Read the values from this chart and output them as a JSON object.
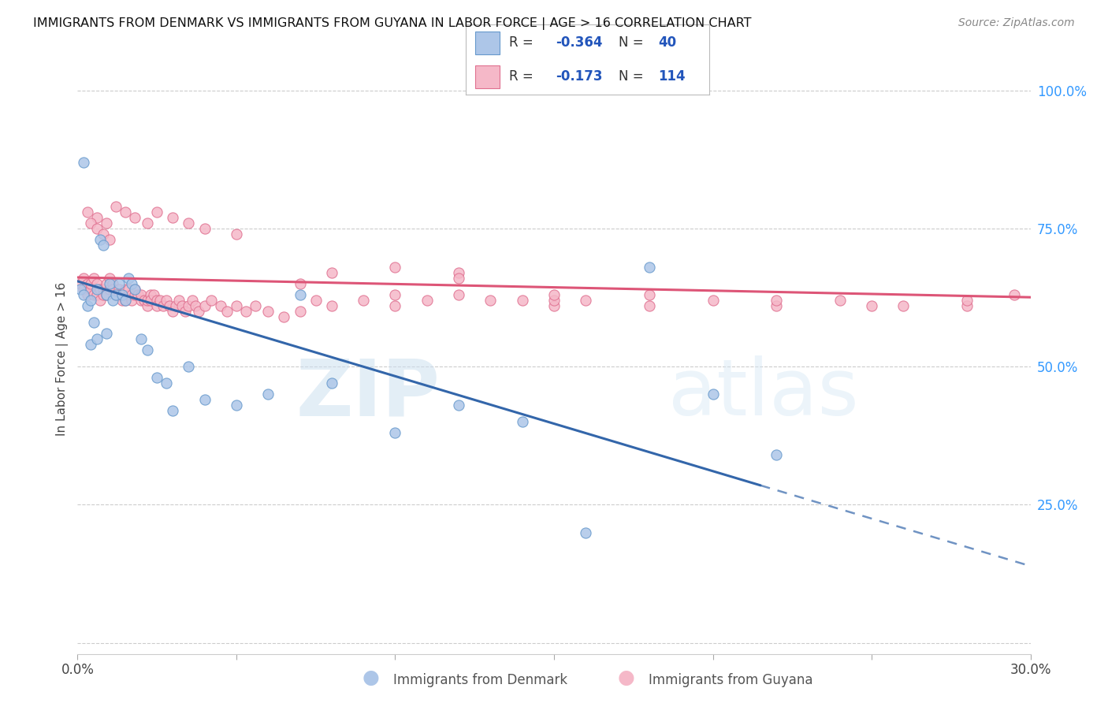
{
  "title": "IMMIGRANTS FROM DENMARK VS IMMIGRANTS FROM GUYANA IN LABOR FORCE | AGE > 16 CORRELATION CHART",
  "source": "Source: ZipAtlas.com",
  "ylabel": "In Labor Force | Age > 16",
  "xlim": [
    0.0,
    0.3
  ],
  "ylim": [
    0.0,
    1.05
  ],
  "ytick_labels": [
    "",
    "25.0%",
    "50.0%",
    "75.0%",
    "100.0%"
  ],
  "ytick_values": [
    0.0,
    0.25,
    0.5,
    0.75,
    1.0
  ],
  "xtick_labels": [
    "0.0%",
    "",
    "",
    "",
    "",
    "",
    "30.0%"
  ],
  "xtick_values": [
    0.0,
    0.05,
    0.1,
    0.15,
    0.2,
    0.25,
    0.3
  ],
  "denmark_fill_color": "#adc6e8",
  "denmark_edge_color": "#6699cc",
  "guyana_fill_color": "#f5b8c8",
  "guyana_edge_color": "#e07090",
  "denmark_line_color": "#3366aa",
  "guyana_line_color": "#dd5577",
  "dk_intercept": 0.655,
  "dk_slope": -1.72,
  "gy_intercept": 0.662,
  "gy_slope": -0.12,
  "dk_x": [
    0.001,
    0.002,
    0.003,
    0.004,
    0.005,
    0.006,
    0.007,
    0.008,
    0.009,
    0.01,
    0.011,
    0.012,
    0.013,
    0.014,
    0.015,
    0.016,
    0.017,
    0.018,
    0.02,
    0.022,
    0.025,
    0.028,
    0.03,
    0.035,
    0.04,
    0.05,
    0.06,
    0.07,
    0.08,
    0.1,
    0.12,
    0.14,
    0.16,
    0.18,
    0.2,
    0.22,
    0.002,
    0.004,
    0.006,
    0.009
  ],
  "dk_y": [
    0.64,
    0.63,
    0.61,
    0.62,
    0.58,
    0.64,
    0.73,
    0.72,
    0.63,
    0.65,
    0.62,
    0.63,
    0.65,
    0.63,
    0.62,
    0.66,
    0.65,
    0.64,
    0.55,
    0.53,
    0.48,
    0.47,
    0.42,
    0.5,
    0.44,
    0.43,
    0.45,
    0.63,
    0.47,
    0.38,
    0.43,
    0.4,
    0.2,
    0.68,
    0.45,
    0.34,
    0.87,
    0.54,
    0.55,
    0.56
  ],
  "gy_x": [
    0.001,
    0.002,
    0.002,
    0.003,
    0.003,
    0.004,
    0.004,
    0.005,
    0.005,
    0.006,
    0.006,
    0.007,
    0.007,
    0.008,
    0.008,
    0.009,
    0.009,
    0.01,
    0.01,
    0.011,
    0.011,
    0.012,
    0.012,
    0.013,
    0.013,
    0.014,
    0.014,
    0.015,
    0.015,
    0.016,
    0.016,
    0.017,
    0.017,
    0.018,
    0.018,
    0.019,
    0.02,
    0.02,
    0.021,
    0.022,
    0.022,
    0.023,
    0.023,
    0.024,
    0.025,
    0.025,
    0.026,
    0.027,
    0.028,
    0.029,
    0.03,
    0.031,
    0.032,
    0.033,
    0.034,
    0.035,
    0.036,
    0.037,
    0.038,
    0.04,
    0.042,
    0.045,
    0.047,
    0.05,
    0.053,
    0.056,
    0.06,
    0.065,
    0.07,
    0.075,
    0.08,
    0.09,
    0.1,
    0.11,
    0.12,
    0.13,
    0.14,
    0.15,
    0.16,
    0.18,
    0.2,
    0.22,
    0.24,
    0.26,
    0.28,
    0.295,
    0.003,
    0.006,
    0.009,
    0.012,
    0.015,
    0.018,
    0.022,
    0.025,
    0.03,
    0.035,
    0.04,
    0.05,
    0.07,
    0.1,
    0.12,
    0.15,
    0.18,
    0.22,
    0.25,
    0.28,
    0.08,
    0.1,
    0.12,
    0.15,
    0.004,
    0.006,
    0.008,
    0.01
  ],
  "gy_y": [
    0.65,
    0.66,
    0.64,
    0.65,
    0.63,
    0.64,
    0.65,
    0.63,
    0.66,
    0.65,
    0.63,
    0.64,
    0.62,
    0.64,
    0.63,
    0.65,
    0.63,
    0.64,
    0.66,
    0.65,
    0.64,
    0.63,
    0.63,
    0.64,
    0.63,
    0.62,
    0.63,
    0.64,
    0.62,
    0.63,
    0.64,
    0.63,
    0.62,
    0.63,
    0.64,
    0.63,
    0.62,
    0.63,
    0.62,
    0.61,
    0.62,
    0.63,
    0.62,
    0.63,
    0.62,
    0.61,
    0.62,
    0.61,
    0.62,
    0.61,
    0.6,
    0.61,
    0.62,
    0.61,
    0.6,
    0.61,
    0.62,
    0.61,
    0.6,
    0.61,
    0.62,
    0.61,
    0.6,
    0.61,
    0.6,
    0.61,
    0.6,
    0.59,
    0.6,
    0.62,
    0.61,
    0.62,
    0.61,
    0.62,
    0.63,
    0.62,
    0.62,
    0.61,
    0.62,
    0.61,
    0.62,
    0.61,
    0.62,
    0.61,
    0.61,
    0.63,
    0.78,
    0.77,
    0.76,
    0.79,
    0.78,
    0.77,
    0.76,
    0.78,
    0.77,
    0.76,
    0.75,
    0.74,
    0.65,
    0.63,
    0.67,
    0.62,
    0.63,
    0.62,
    0.61,
    0.62,
    0.67,
    0.68,
    0.66,
    0.63,
    0.76,
    0.75,
    0.74,
    0.73
  ]
}
